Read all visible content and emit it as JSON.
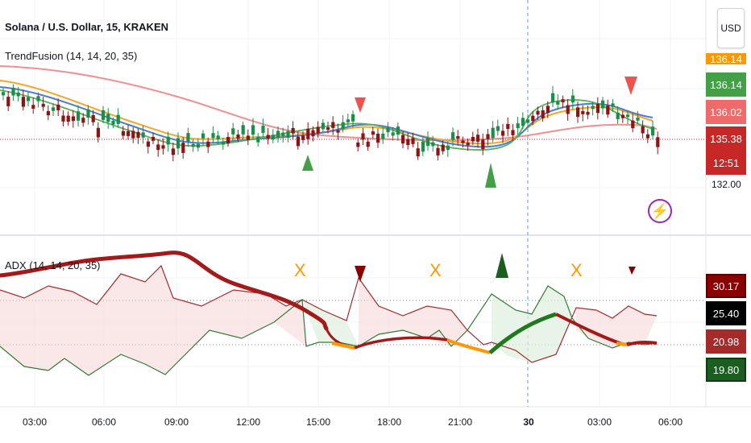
{
  "header": {
    "title": "Solana / U.S. Dollar, 15, KRAKEN",
    "indicator": "TrendFusion (14, 14, 20, 35)",
    "currency_button": "USD"
  },
  "price_scale": {
    "top_tag": "136.14",
    "tag_mid": "136.02",
    "tag_last": "135.38",
    "tag_timer": "12:51",
    "label_132": "132.00",
    "colors": {
      "green": "#43a047",
      "light_red": "#ef5350",
      "dark_red": "#c62828",
      "orange": "#ff9800"
    }
  },
  "adx_pane": {
    "label": "ADX (14, 14, 20, 35)",
    "tags": {
      "v1": "30.17",
      "v2": "25.40",
      "v3": "20.98",
      "v4": "19.80"
    },
    "colors": {
      "dark_red": "#8b0000",
      "black": "#000000",
      "dark_green": "#1b5e20",
      "orange": "#ff9800"
    },
    "x_marker": "X"
  },
  "time_axis": {
    "labels": [
      "03:00",
      "06:00",
      "09:00",
      "12:00",
      "15:00",
      "18:00",
      "21:00",
      "30",
      "03:00",
      "06:00"
    ]
  },
  "icons": {
    "alert": "lightning-bolt-icon"
  }
}
